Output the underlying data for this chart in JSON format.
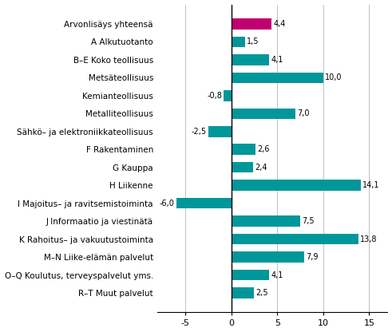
{
  "categories": [
    "R–T Muut palvelut",
    "O–Q Koulutus, terveyspalvelut yms.",
    "M–N Liike-elämän palvelut",
    "K Rahoitus– ja vakuutustoiminta",
    "J Informaatio ja viestinätä",
    "I Majoitus– ja ravitsemistoiminta",
    "H Liikenne",
    "G Kauppa",
    "F Rakentaminen",
    "Sähkö– ja elektroniikkateollisuus",
    "Metalliteollisuus",
    "Kemianteollisuus",
    "Metsäteollisuus",
    "B–E Koko teollisuus",
    "A Alkutuotanto",
    "Arvonlisäys yhteensä"
  ],
  "values": [
    2.5,
    4.1,
    7.9,
    13.8,
    7.5,
    -6.0,
    14.1,
    2.4,
    2.6,
    -2.5,
    7.0,
    -0.8,
    10.0,
    4.1,
    1.5,
    4.4
  ],
  "bar_colors": [
    "#00979a",
    "#00979a",
    "#00979a",
    "#00979a",
    "#00979a",
    "#00979a",
    "#00979a",
    "#00979a",
    "#00979a",
    "#00979a",
    "#00979a",
    "#00979a",
    "#00979a",
    "#00979a",
    "#00979a",
    "#c0006e"
  ],
  "xlim": [
    -8,
    17
  ],
  "xticks": [
    -5,
    0,
    5,
    10,
    15
  ],
  "value_fontsize": 7.0,
  "label_fontsize": 7.5,
  "tick_fontsize": 8.0
}
